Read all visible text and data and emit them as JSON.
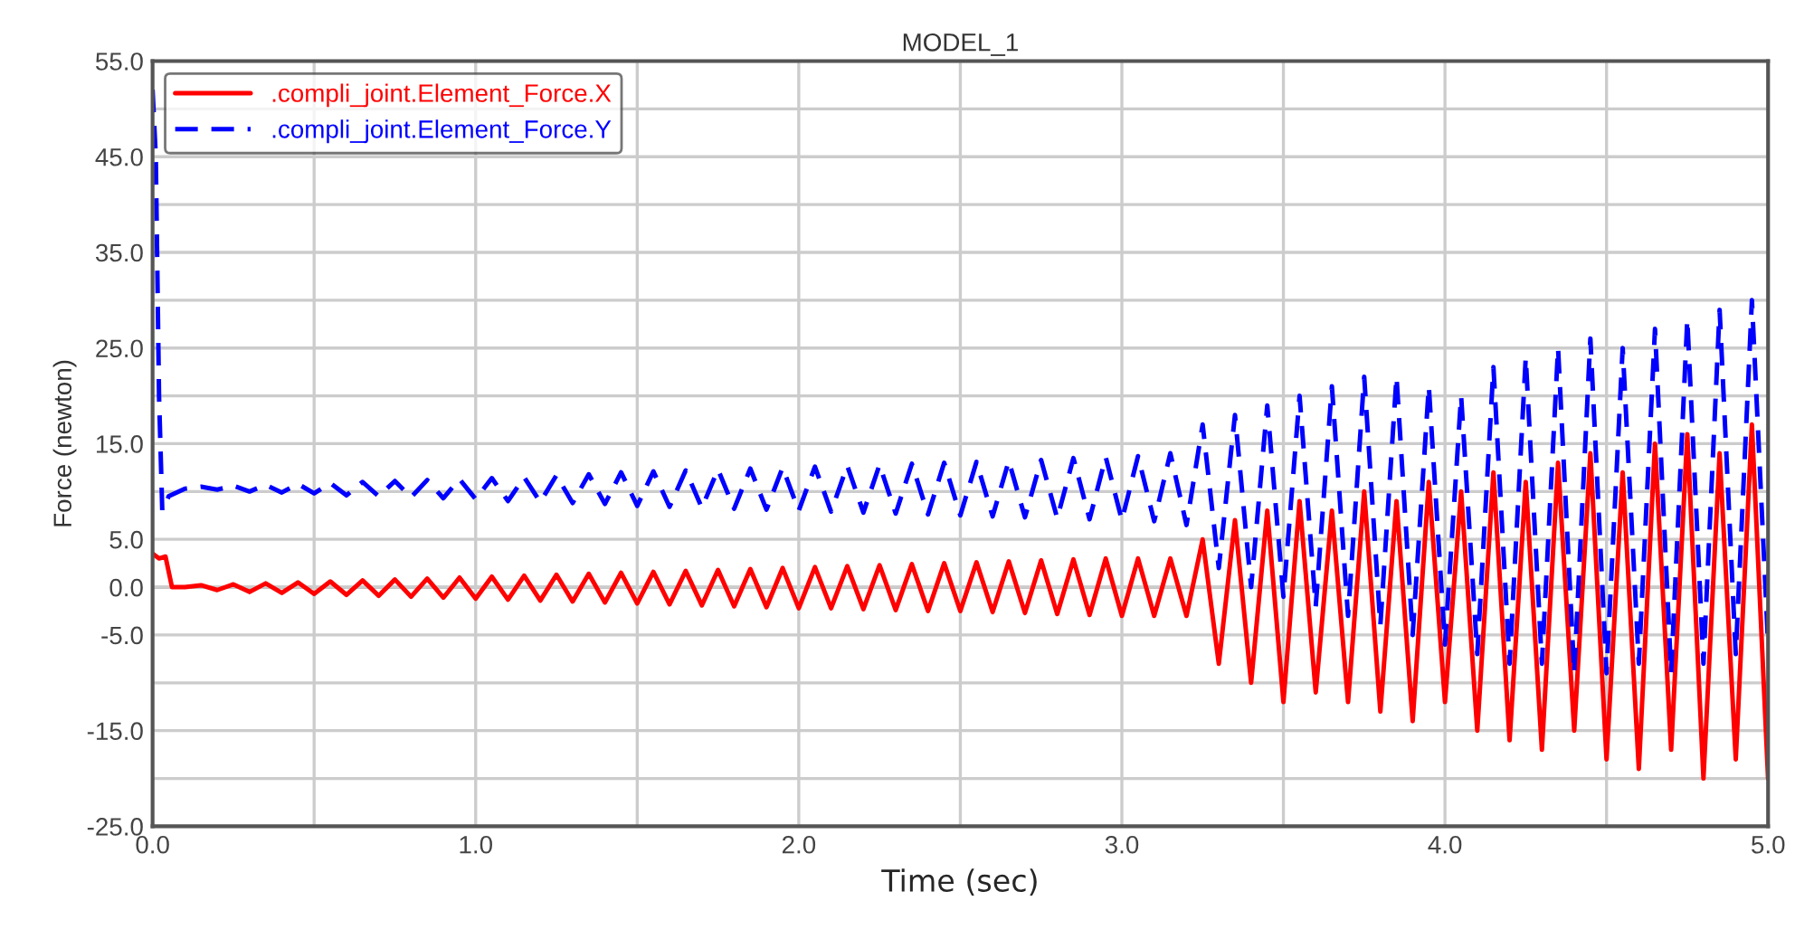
{
  "chart_data": {
    "type": "line",
    "title": "MODEL_1",
    "xlabel": "Time (sec)",
    "ylabel": "Force (newton)",
    "xlim": [
      0,
      5
    ],
    "ylim": [
      -25,
      55
    ],
    "xticks": [
      {
        "value": 0,
        "label": "0.0"
      },
      {
        "value": 0.5,
        "label": null
      },
      {
        "value": 1,
        "label": "1.0"
      },
      {
        "value": 1.5,
        "label": null
      },
      {
        "value": 2,
        "label": "2.0"
      },
      {
        "value": 2.5,
        "label": null
      },
      {
        "value": 3,
        "label": "3.0"
      },
      {
        "value": 3.5,
        "label": null
      },
      {
        "value": 4,
        "label": "4.0"
      },
      {
        "value": 4.5,
        "label": null
      },
      {
        "value": 5,
        "label": "5.0"
      }
    ],
    "yticks": [
      {
        "value": -25,
        "label": "-25.0"
      },
      {
        "value": -20,
        "label": null
      },
      {
        "value": -15,
        "label": "-15.0"
      },
      {
        "value": -10,
        "label": null
      },
      {
        "value": -5,
        "label": "-5.0"
      },
      {
        "value": 0,
        "label": "0.0"
      },
      {
        "value": 5,
        "label": "5.0"
      },
      {
        "value": 10,
        "label": null
      },
      {
        "value": 15,
        "label": "15.0"
      },
      {
        "value": 20,
        "label": null
      },
      {
        "value": 25,
        "label": "25.0"
      },
      {
        "value": 30,
        "label": null
      },
      {
        "value": 35,
        "label": "35.0"
      },
      {
        "value": 40,
        "label": null
      },
      {
        "value": 45,
        "label": "45.0"
      },
      {
        "value": 50,
        "label": null
      },
      {
        "value": 55,
        "label": "55.0"
      }
    ],
    "grid": true,
    "legend": "top left",
    "marker": "none",
    "series": [
      {
        "name": ".compli_joint.Element_Force.X",
        "color": "#ff0000",
        "line_style": "solid",
        "x": [
          0,
          0.02,
          0.04,
          0.06,
          0.1,
          0.15,
          0.2,
          0.25,
          0.3,
          0.35,
          0.4,
          0.45,
          0.5,
          0.55,
          0.6,
          0.65,
          0.7,
          0.75,
          0.8,
          0.85,
          0.9,
          0.95,
          1.0,
          1.05,
          1.1,
          1.15,
          1.2,
          1.25,
          1.3,
          1.35,
          1.4,
          1.45,
          1.5,
          1.55,
          1.6,
          1.65,
          1.7,
          1.75,
          1.8,
          1.85,
          1.9,
          1.95,
          2.0,
          2.05,
          2.1,
          2.15,
          2.2,
          2.25,
          2.3,
          2.35,
          2.4,
          2.45,
          2.5,
          2.55,
          2.6,
          2.65,
          2.7,
          2.75,
          2.8,
          2.85,
          2.9,
          2.95,
          3.0,
          3.05,
          3.1,
          3.15,
          3.2,
          3.25,
          3.3,
          3.35,
          3.4,
          3.45,
          3.5,
          3.55,
          3.6,
          3.65,
          3.7,
          3.75,
          3.8,
          3.85,
          3.9,
          3.95,
          4.0,
          4.05,
          4.1,
          4.15,
          4.2,
          4.25,
          4.3,
          4.35,
          4.4,
          4.45,
          4.5,
          4.55,
          4.6,
          4.65,
          4.7,
          4.75,
          4.8,
          4.85,
          4.9,
          4.95,
          5.0
        ],
        "values": [
          3.5,
          3.0,
          3.2,
          0,
          0,
          0.2,
          -0.3,
          0.3,
          -0.5,
          0.4,
          -0.6,
          0.5,
          -0.7,
          0.6,
          -0.8,
          0.7,
          -0.9,
          0.8,
          -1.0,
          0.9,
          -1.1,
          1.0,
          -1.2,
          1.1,
          -1.3,
          1.2,
          -1.4,
          1.3,
          -1.5,
          1.4,
          -1.6,
          1.5,
          -1.7,
          1.6,
          -1.8,
          1.7,
          -1.9,
          1.8,
          -2.0,
          1.9,
          -2.1,
          2.0,
          -2.2,
          2.1,
          -2.2,
          2.2,
          -2.3,
          2.3,
          -2.4,
          2.4,
          -2.5,
          2.5,
          -2.5,
          2.6,
          -2.6,
          2.7,
          -2.7,
          2.8,
          -2.8,
          2.9,
          -2.9,
          3.0,
          -3.0,
          3.0,
          -3.0,
          3.0,
          -3.0,
          5,
          -8,
          7,
          -10,
          8,
          -12,
          9,
          -11,
          8,
          -12,
          10,
          -13,
          9,
          -14,
          11,
          -12,
          10,
          -15,
          12,
          -16,
          11,
          -17,
          13,
          -15,
          14,
          -18,
          12,
          -19,
          15,
          -17,
          16,
          -20,
          14,
          -18,
          17,
          -20
        ]
      },
      {
        "name": ".compli_joint.Element_Force.Y",
        "color": "#0000ff",
        "line_style": "dashed",
        "x": [
          0,
          0.01,
          0.02,
          0.03,
          0.05,
          0.1,
          0.15,
          0.2,
          0.25,
          0.3,
          0.35,
          0.4,
          0.45,
          0.5,
          0.55,
          0.6,
          0.65,
          0.7,
          0.75,
          0.8,
          0.85,
          0.9,
          0.95,
          1.0,
          1.05,
          1.1,
          1.15,
          1.2,
          1.25,
          1.3,
          1.35,
          1.4,
          1.45,
          1.5,
          1.55,
          1.6,
          1.65,
          1.7,
          1.75,
          1.8,
          1.85,
          1.9,
          1.95,
          2.0,
          2.05,
          2.1,
          2.15,
          2.2,
          2.25,
          2.3,
          2.35,
          2.4,
          2.45,
          2.5,
          2.55,
          2.6,
          2.65,
          2.7,
          2.75,
          2.8,
          2.85,
          2.9,
          2.95,
          3.0,
          3.05,
          3.1,
          3.15,
          3.2,
          3.25,
          3.3,
          3.35,
          3.4,
          3.45,
          3.5,
          3.55,
          3.6,
          3.65,
          3.7,
          3.75,
          3.8,
          3.85,
          3.9,
          3.95,
          4.0,
          4.05,
          4.1,
          4.15,
          4.2,
          4.25,
          4.3,
          4.35,
          4.4,
          4.45,
          4.5,
          4.55,
          4.6,
          4.65,
          4.7,
          4.75,
          4.8,
          4.85,
          4.9,
          4.95,
          5.0
        ],
        "values": [
          52,
          45,
          20,
          8,
          9.5,
          10.3,
          10.5,
          10.2,
          10.6,
          10.0,
          10.7,
          9.9,
          10.8,
          9.8,
          10.9,
          9.6,
          11.0,
          9.5,
          11.1,
          9.4,
          11.2,
          9.3,
          11.3,
          9.2,
          11.4,
          9.0,
          11.5,
          8.9,
          11.7,
          8.8,
          11.8,
          8.7,
          12.0,
          8.5,
          12.1,
          8.4,
          12.2,
          8.3,
          12.3,
          8.2,
          12.4,
          8.1,
          12.5,
          8.0,
          12.6,
          7.9,
          12.7,
          7.8,
          12.8,
          7.7,
          12.9,
          7.6,
          13.0,
          7.5,
          13.1,
          7.4,
          13.2,
          7.3,
          13.3,
          7.2,
          13.5,
          7.1,
          13.6,
          7.0,
          13.7,
          6.9,
          14.0,
          6.5,
          17,
          2,
          18,
          0,
          19,
          -1,
          20,
          -2,
          21,
          -3,
          22,
          -4,
          22,
          -5,
          21,
          -6,
          20,
          -7,
          23,
          -8,
          24,
          -8,
          25,
          -9,
          26,
          -9,
          25,
          -8,
          27,
          -9,
          28,
          -8,
          29,
          -7,
          30,
          -6
        ]
      }
    ]
  }
}
